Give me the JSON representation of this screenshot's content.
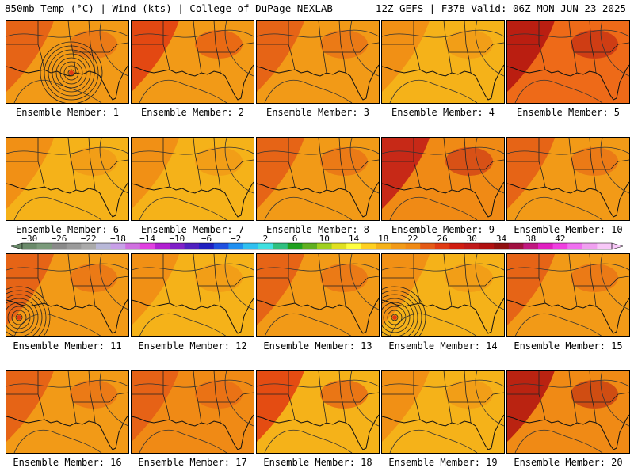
{
  "header": {
    "left": "850mb Temp (°C) | Wind (kts) | College of DuPage NEXLAB",
    "right": "12Z GEFS | F378 Valid: 06Z MON JUN 23 2025"
  },
  "panels": [
    {
      "label": "Ensemble Member: 1",
      "base": "#f29a17",
      "accent": "#e45a16",
      "low": true
    },
    {
      "label": "Ensemble Member: 2",
      "base": "#f29a17",
      "accent": "#e03a12",
      "low": false
    },
    {
      "label": "Ensemble Member: 3",
      "base": "#f29a17",
      "accent": "#e45a16",
      "low": false
    },
    {
      "label": "Ensemble Member: 4",
      "base": "#f5b219",
      "accent": "#f08a15",
      "low": false
    },
    {
      "label": "Ensemble Member: 5",
      "base": "#ee6a18",
      "accent": "#b01010",
      "low": false
    },
    {
      "label": "Ensemble Member: 6",
      "base": "#f5b219",
      "accent": "#f08a15",
      "low": false
    },
    {
      "label": "Ensemble Member: 7",
      "base": "#f5b219",
      "accent": "#f08a15",
      "low": false
    },
    {
      "label": "Ensemble Member: 8",
      "base": "#f29a17",
      "accent": "#e45a16",
      "low": false
    },
    {
      "label": "Ensemble Member: 9",
      "base": "#f08a15",
      "accent": "#c01818",
      "low": false
    },
    {
      "label": "Ensemble Member: 10",
      "base": "#f29a17",
      "accent": "#e45a16",
      "low": false
    },
    {
      "label": "Ensemble Member: 11",
      "base": "#f29a17",
      "accent": "#e45a16",
      "low": true
    },
    {
      "label": "Ensemble Member: 12",
      "base": "#f5b219",
      "accent": "#f08a15",
      "low": false
    },
    {
      "label": "Ensemble Member: 13",
      "base": "#f29a17",
      "accent": "#e45a16",
      "low": false
    },
    {
      "label": "Ensemble Member: 14",
      "base": "#f5b219",
      "accent": "#f08a15",
      "low": true
    },
    {
      "label": "Ensemble Member: 15",
      "base": "#f29a17",
      "accent": "#e45a16",
      "low": false
    },
    {
      "label": "Ensemble Member: 16",
      "base": "#f29a17",
      "accent": "#e45a16",
      "low": false
    },
    {
      "label": "Ensemble Member: 17",
      "base": "#f08a15",
      "accent": "#e45a16",
      "low": false
    },
    {
      "label": "Ensemble Member: 18",
      "base": "#f5b219",
      "accent": "#e03a12",
      "low": false
    },
    {
      "label": "Ensemble Member: 19",
      "base": "#f5b219",
      "accent": "#f08a15",
      "low": false
    },
    {
      "label": "Ensemble Member: 20",
      "base": "#f08a15",
      "accent": "#b01010",
      "low": false
    }
  ],
  "colorbar": {
    "tick_labels": [
      "−30",
      "−26",
      "−22",
      "−18",
      "−14",
      "−10",
      "−6",
      "−2",
      "2",
      "6",
      "10",
      "14",
      "18",
      "22",
      "26",
      "30",
      "34",
      "38",
      "42"
    ],
    "colors": [
      "#6a8a6a",
      "#7a9a7a",
      "#8a8a8a",
      "#9a9a9a",
      "#aaaaaa",
      "#b8b8d8",
      "#c8a0e8",
      "#d070e0",
      "#e040e0",
      "#b020d0",
      "#8020c8",
      "#5020c0",
      "#2020c0",
      "#2050e0",
      "#2090f0",
      "#30c0f0",
      "#40e0e0",
      "#30c080",
      "#20a020",
      "#60b020",
      "#a0d020",
      "#e0e020",
      "#ffff40",
      "#ffd020",
      "#f5b219",
      "#f29a17",
      "#f08a15",
      "#e45a16",
      "#e03a12",
      "#d01c10",
      "#c01818",
      "#b01010",
      "#901010",
      "#a01040",
      "#c01880",
      "#e020c0",
      "#f040e0",
      "#f070f0",
      "#f0a0f0",
      "#f8c8f8"
    ]
  }
}
